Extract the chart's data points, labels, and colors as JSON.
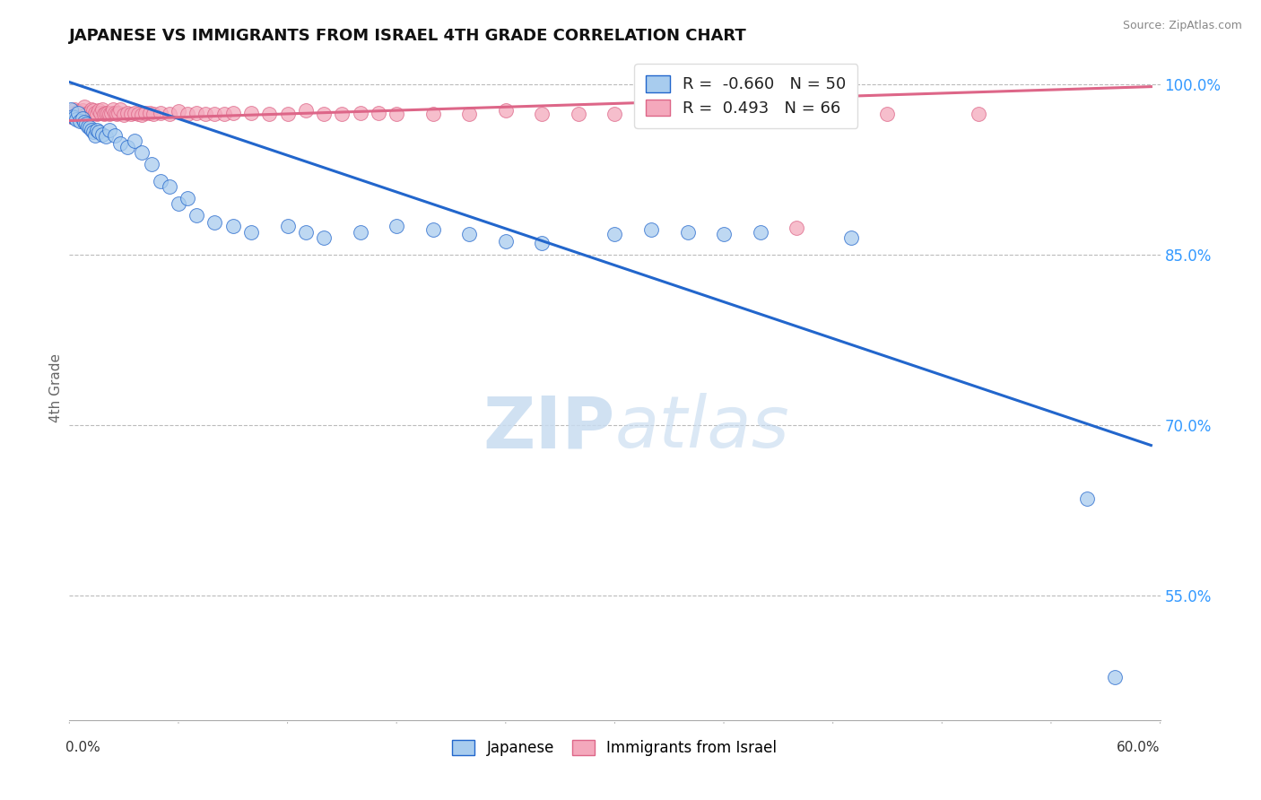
{
  "title": "JAPANESE VS IMMIGRANTS FROM ISRAEL 4TH GRADE CORRELATION CHART",
  "source": "Source: ZipAtlas.com",
  "ylabel": "4th Grade",
  "xlim": [
    0.0,
    0.6
  ],
  "ylim": [
    0.44,
    1.025
  ],
  "yticks": [
    0.55,
    0.7,
    0.85,
    1.0
  ],
  "ytick_labels": [
    "55.0%",
    "70.0%",
    "85.0%",
    "100.0%"
  ],
  "hlines": [
    1.0,
    0.85,
    0.7,
    0.55
  ],
  "blue_R": -0.66,
  "blue_N": 50,
  "pink_R": 0.493,
  "pink_N": 66,
  "blue_color": "#A8CCEE",
  "pink_color": "#F4A8BC",
  "blue_line_color": "#2266CC",
  "pink_line_color": "#DD6688",
  "watermark_zip": "ZIP",
  "watermark_atlas": "atlas",
  "legend_label_blue": "Japanese",
  "legend_label_pink": "Immigrants from Israel",
  "blue_scatter_x": [
    0.001,
    0.002,
    0.003,
    0.004,
    0.005,
    0.006,
    0.007,
    0.008,
    0.009,
    0.01,
    0.011,
    0.012,
    0.013,
    0.014,
    0.015,
    0.016,
    0.018,
    0.02,
    0.022,
    0.025,
    0.028,
    0.032,
    0.036,
    0.04,
    0.045,
    0.05,
    0.055,
    0.06,
    0.065,
    0.07,
    0.08,
    0.09,
    0.1,
    0.12,
    0.13,
    0.14,
    0.16,
    0.18,
    0.2,
    0.22,
    0.24,
    0.26,
    0.3,
    0.32,
    0.34,
    0.36,
    0.38,
    0.43,
    0.56,
    0.575
  ],
  "blue_scatter_y": [
    0.978,
    0.972,
    0.971,
    0.969,
    0.975,
    0.968,
    0.97,
    0.967,
    0.965,
    0.963,
    0.962,
    0.96,
    0.958,
    0.955,
    0.96,
    0.958,
    0.956,
    0.954,
    0.96,
    0.955,
    0.948,
    0.945,
    0.95,
    0.94,
    0.93,
    0.915,
    0.91,
    0.895,
    0.9,
    0.885,
    0.878,
    0.875,
    0.87,
    0.875,
    0.87,
    0.865,
    0.87,
    0.875,
    0.872,
    0.868,
    0.862,
    0.86,
    0.868,
    0.872,
    0.87,
    0.868,
    0.87,
    0.865,
    0.635,
    0.478
  ],
  "pink_scatter_x": [
    0.001,
    0.002,
    0.003,
    0.004,
    0.005,
    0.006,
    0.007,
    0.008,
    0.009,
    0.01,
    0.011,
    0.012,
    0.013,
    0.014,
    0.015,
    0.016,
    0.017,
    0.018,
    0.019,
    0.02,
    0.021,
    0.022,
    0.023,
    0.024,
    0.025,
    0.026,
    0.027,
    0.028,
    0.03,
    0.032,
    0.034,
    0.036,
    0.038,
    0.04,
    0.042,
    0.044,
    0.046,
    0.05,
    0.055,
    0.06,
    0.065,
    0.07,
    0.075,
    0.08,
    0.085,
    0.09,
    0.1,
    0.11,
    0.12,
    0.13,
    0.14,
    0.15,
    0.16,
    0.17,
    0.18,
    0.2,
    0.22,
    0.24,
    0.26,
    0.28,
    0.3,
    0.33,
    0.36,
    0.4,
    0.45,
    0.5
  ],
  "pink_scatter_y": [
    0.972,
    0.975,
    0.978,
    0.974,
    0.976,
    0.973,
    0.977,
    0.98,
    0.974,
    0.975,
    0.975,
    0.978,
    0.977,
    0.975,
    0.974,
    0.977,
    0.975,
    0.978,
    0.974,
    0.975,
    0.975,
    0.974,
    0.975,
    0.978,
    0.975,
    0.974,
    0.975,
    0.978,
    0.973,
    0.975,
    0.974,
    0.975,
    0.974,
    0.973,
    0.975,
    0.975,
    0.974,
    0.975,
    0.974,
    0.976,
    0.974,
    0.975,
    0.974,
    0.974,
    0.974,
    0.975,
    0.975,
    0.974,
    0.974,
    0.977,
    0.974,
    0.974,
    0.975,
    0.975,
    0.974,
    0.974,
    0.974,
    0.977,
    0.974,
    0.974,
    0.974,
    0.974,
    0.974,
    0.874,
    0.974,
    0.974
  ],
  "blue_line_x": [
    0.0,
    0.595
  ],
  "blue_line_y": [
    1.002,
    0.682
  ],
  "pink_line_x": [
    0.0,
    0.595
  ],
  "pink_line_y": [
    0.968,
    0.998
  ]
}
